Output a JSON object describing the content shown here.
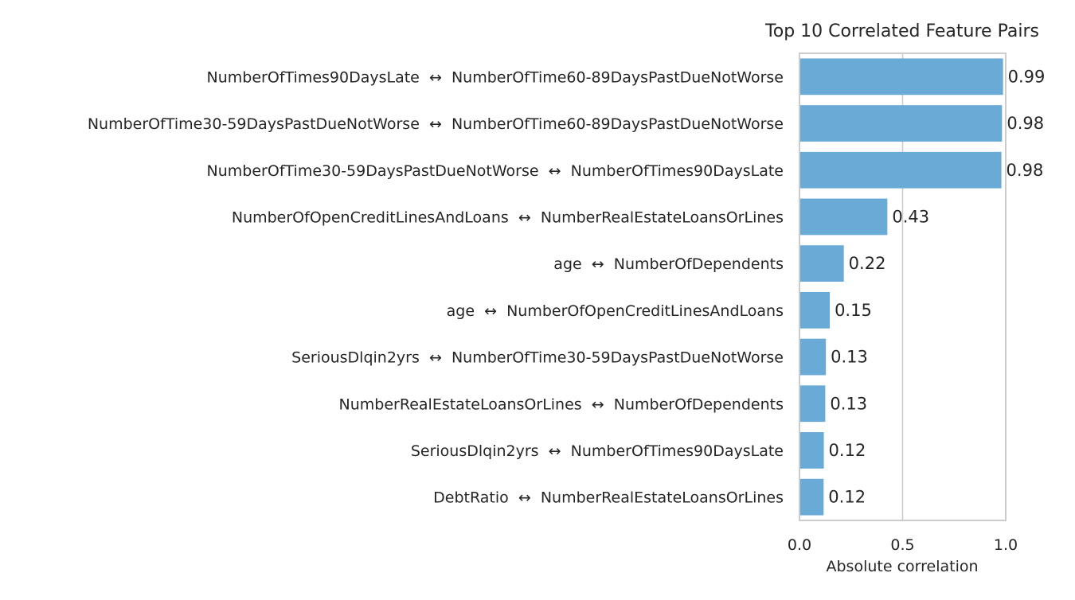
{
  "chart_data": {
    "type": "bar",
    "orientation": "horizontal",
    "title": "Top 10 Correlated Feature Pairs",
    "xlabel": "Absolute correlation",
    "ylabel": "",
    "xlim": [
      0,
      1.0
    ],
    "xticks": [
      0.0,
      0.5,
      1.0
    ],
    "xtick_labels": [
      "0.0",
      "0.5",
      "1.0"
    ],
    "grid": "vertical",
    "bar_color": "#6aaad6",
    "categories": [
      "NumberOfTimes90DaysLate  ↔  NumberOfTime60-89DaysPastDueNotWorse",
      "NumberOfTime30-59DaysPastDueNotWorse  ↔  NumberOfTime60-89DaysPastDueNotWorse",
      "NumberOfTime30-59DaysPastDueNotWorse  ↔  NumberOfTimes90DaysLate",
      "NumberOfOpenCreditLinesAndLoans  ↔  NumberRealEstateLoansOrLines",
      "age  ↔  NumberOfDependents",
      "age  ↔  NumberOfOpenCreditLinesAndLoans",
      "SeriousDlqin2yrs  ↔  NumberOfTime30-59DaysPastDueNotWorse",
      "NumberRealEstateLoansOrLines  ↔  NumberOfDependents",
      "SeriousDlqin2yrs  ↔  NumberOfTimes90DaysLate",
      "DebtRatio  ↔  NumberRealEstateLoansOrLines"
    ],
    "values": [
      0.987,
      0.982,
      0.979,
      0.426,
      0.215,
      0.147,
      0.128,
      0.125,
      0.118,
      0.117
    ],
    "value_labels": [
      "0.99",
      "0.98",
      "0.98",
      "0.43",
      "0.22",
      "0.15",
      "0.13",
      "0.13",
      "0.12",
      "0.12"
    ]
  }
}
